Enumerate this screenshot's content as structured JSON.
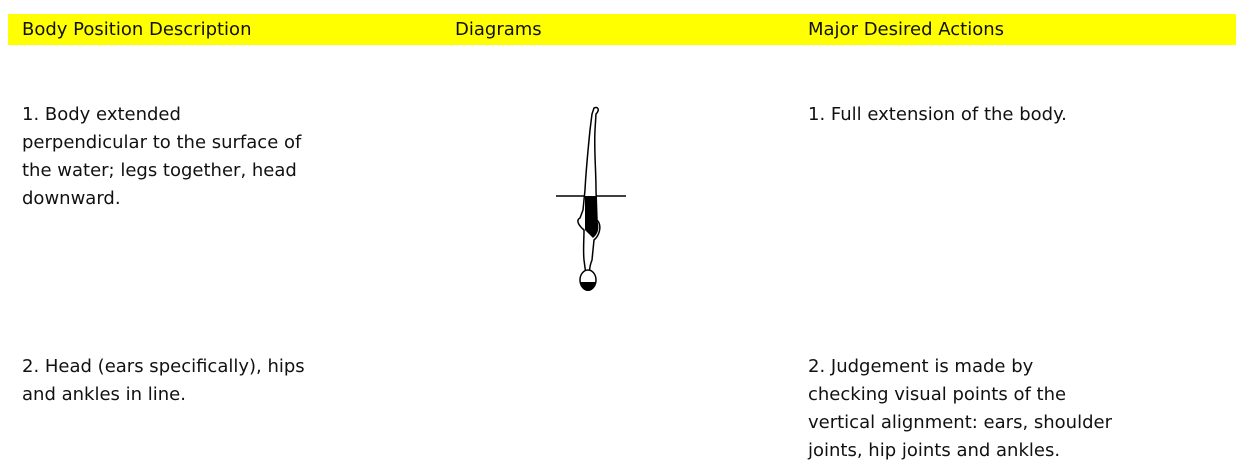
{
  "table": {
    "headers": [
      "Body Position Description",
      "Diagrams",
      "Major Desired Actions"
    ],
    "rows": [
      {
        "description": [
          "1. Body extended",
          "perpendicular to the surface of",
          "the water; legs together, head",
          "downward."
        ],
        "actions": [
          "1. Full extension of the body."
        ]
      },
      {
        "description": [
          "2. Head (ears specifically), hips",
          "and ankles in line."
        ],
        "actions": [
          "2. Judgement is made by",
          "checking visual points of the",
          "vertical alignment: ears, shoulder",
          "joints, hip joints and ankles."
        ]
      }
    ]
  }
}
